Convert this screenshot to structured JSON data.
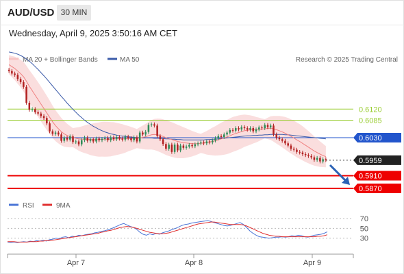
{
  "header": {
    "symbol": "AUD/USD",
    "timeframe": "30 MIN",
    "datetime": "Wednesday, April 9, 2025 3:50:16 AM CET"
  },
  "legend": {
    "ma20": "MA 20 + Bollinger Bands",
    "ma50": "MA 50",
    "rsi": "RSI",
    "ma9": "9MA"
  },
  "copyright": "Research © 2025 Trading Central",
  "colors": {
    "candle_up": "#2e8b57",
    "candle_down": "#b22222",
    "bollinger_fill": "#f9d6d6",
    "ma20": "#f08080",
    "ma50": "#3b5ba9",
    "level_green": "#9acd32",
    "level_blue": "#2255cc",
    "level_red": "#ee0000",
    "arrow": "#2b62b5",
    "rsi": "#4a74d6",
    "rsi_ma": "#e03030"
  },
  "chart_data": [
    {
      "type": "candlestick",
      "title": "AUD/USD 30 MIN",
      "x_ticks": [
        "Apr 7",
        "Apr 8",
        "Apr 9"
      ],
      "ylim": [
        0.5855,
        0.6235
      ],
      "levels": [
        {
          "value": 0.612,
          "label": "0.6120",
          "kind": "resistance"
        },
        {
          "value": 0.6085,
          "label": "0.6085",
          "kind": "resistance"
        },
        {
          "value": 0.603,
          "label": "0.6030",
          "kind": "pivot"
        },
        {
          "value": 0.5959,
          "label": "0.5959",
          "kind": "last"
        },
        {
          "value": 0.591,
          "label": "0.5910",
          "kind": "support"
        },
        {
          "value": 0.587,
          "label": "0.5870",
          "kind": "support"
        }
      ],
      "closes": [
        0.624,
        0.6232,
        0.6228,
        0.6215,
        0.6205,
        0.619,
        0.614,
        0.6118,
        0.612,
        0.611,
        0.6106,
        0.6098,
        0.6092,
        0.6075,
        0.605,
        0.6042,
        0.6046,
        0.604,
        0.602,
        0.603,
        0.6024,
        0.6034,
        0.6016,
        0.6018,
        0.6009,
        0.6022,
        0.603,
        0.602,
        0.6025,
        0.6018,
        0.6027,
        0.6022,
        0.6026,
        0.6029,
        0.6022,
        0.6031,
        0.6025,
        0.6032,
        0.6027,
        0.6024,
        0.6033,
        0.6028,
        0.6022,
        0.6031,
        0.6018,
        0.6046,
        0.604,
        0.6048,
        0.607,
        0.6072,
        0.6068,
        0.6035,
        0.6025,
        0.601,
        0.5995,
        0.6008,
        0.5985,
        0.6008,
        0.599,
        0.6005,
        0.5998,
        0.6002,
        0.6007,
        0.6003,
        0.6009,
        0.6012,
        0.6015,
        0.6012,
        0.6018,
        0.6015,
        0.6021,
        0.6028,
        0.6035,
        0.6032,
        0.604,
        0.6046,
        0.6054,
        0.6052,
        0.606,
        0.6056,
        0.6063,
        0.606,
        0.6055,
        0.606,
        0.605,
        0.6056,
        0.6062,
        0.606,
        0.607,
        0.6063,
        0.6068,
        0.604,
        0.603,
        0.6025,
        0.602,
        0.6012,
        0.6005,
        0.5995,
        0.5992,
        0.5985,
        0.5983,
        0.5978,
        0.5975,
        0.5972,
        0.5968,
        0.596,
        0.5966,
        0.5955,
        0.5962,
        0.5959
      ],
      "opens": [
        0.6244,
        0.624,
        0.6232,
        0.6228,
        0.6215,
        0.6205,
        0.619,
        0.614,
        0.6118,
        0.612,
        0.611,
        0.6106,
        0.6098,
        0.6092,
        0.6075,
        0.605,
        0.6042,
        0.6046,
        0.604,
        0.602,
        0.603,
        0.6024,
        0.6034,
        0.6016,
        0.6018,
        0.6009,
        0.6022,
        0.603,
        0.602,
        0.6025,
        0.6018,
        0.6027,
        0.6022,
        0.6026,
        0.6029,
        0.6022,
        0.6031,
        0.6025,
        0.6032,
        0.6027,
        0.6024,
        0.6033,
        0.6028,
        0.6022,
        0.6031,
        0.6018,
        0.6046,
        0.604,
        0.6048,
        0.607,
        0.6072,
        0.6068,
        0.6035,
        0.6025,
        0.601,
        0.5995,
        0.6008,
        0.5985,
        0.6008,
        0.599,
        0.6005,
        0.5998,
        0.6002,
        0.6007,
        0.6003,
        0.6009,
        0.6012,
        0.6015,
        0.6012,
        0.6018,
        0.6015,
        0.6021,
        0.6028,
        0.6035,
        0.6032,
        0.604,
        0.6046,
        0.6054,
        0.6052,
        0.606,
        0.6056,
        0.6063,
        0.606,
        0.6055,
        0.606,
        0.605,
        0.6056,
        0.6062,
        0.606,
        0.607,
        0.6063,
        0.6068,
        0.604,
        0.603,
        0.6025,
        0.602,
        0.6012,
        0.6005,
        0.5995,
        0.5992,
        0.5985,
        0.5983,
        0.5978,
        0.5975,
        0.5972,
        0.5968,
        0.596,
        0.5966,
        0.5955,
        0.5962
      ],
      "ma20": [
        0.626,
        0.6254,
        0.6248,
        0.624,
        0.6232,
        0.6222,
        0.6208,
        0.6192,
        0.6178,
        0.6164,
        0.615,
        0.6136,
        0.6122,
        0.6108,
        0.6094,
        0.608,
        0.6068,
        0.6058,
        0.6049,
        0.6042,
        0.6037,
        0.6033,
        0.603,
        0.6028,
        0.6026,
        0.6025,
        0.6025,
        0.6025,
        0.6024,
        0.6024,
        0.6024,
        0.6024,
        0.6025,
        0.6025,
        0.6025,
        0.6025,
        0.6026,
        0.6026,
        0.6026,
        0.6026,
        0.6026,
        0.6027,
        0.6027,
        0.6027,
        0.6027,
        0.6029,
        0.6031,
        0.6033,
        0.6036,
        0.6039,
        0.604,
        0.6039,
        0.6037,
        0.6034,
        0.603,
        0.6027,
        0.6024,
        0.6021,
        0.6018,
        0.6016,
        0.6014,
        0.6013,
        0.6012,
        0.6011,
        0.6011,
        0.6011,
        0.6012,
        0.6013,
        0.6014,
        0.6016,
        0.6018,
        0.602,
        0.6023,
        0.6026,
        0.6029,
        0.6032,
        0.6036,
        0.604,
        0.6043,
        0.6046,
        0.6049,
        0.6052,
        0.6053,
        0.6054,
        0.6055,
        0.6055,
        0.6056,
        0.6057,
        0.6058,
        0.6059,
        0.606,
        0.6058,
        0.6055,
        0.6052,
        0.6048,
        0.6044,
        0.6039,
        0.6034,
        0.6029,
        0.6023,
        0.6018,
        0.6012,
        0.6006,
        0.6,
        0.5994,
        0.5988,
        0.5983,
        0.5978,
        0.5974,
        0.597
      ],
      "ma50": [
        0.63,
        0.6298,
        0.6296,
        0.6293,
        0.6289,
        0.6284,
        0.6278,
        0.6271,
        0.6263,
        0.6254,
        0.6245,
        0.6235,
        0.6225,
        0.6215,
        0.6204,
        0.6193,
        0.6182,
        0.6171,
        0.616,
        0.615,
        0.6139,
        0.6129,
        0.6119,
        0.611,
        0.6101,
        0.6093,
        0.6085,
        0.6078,
        0.6072,
        0.6066,
        0.6061,
        0.6056,
        0.6052,
        0.6048,
        0.6045,
        0.6042,
        0.604,
        0.6038,
        0.6036,
        0.6035,
        0.6034,
        0.6033,
        0.6032,
        0.6031,
        0.603,
        0.603,
        0.6029,
        0.6029,
        0.6029,
        0.6029,
        0.6028,
        0.6028,
        0.6028,
        0.6027,
        0.6026,
        0.6026,
        0.6025,
        0.6025,
        0.6024,
        0.6024,
        0.6023,
        0.6023,
        0.6023,
        0.6023,
        0.6023,
        0.6023,
        0.6023,
        0.6023,
        0.6024,
        0.6024,
        0.6025,
        0.6025,
        0.6026,
        0.6027,
        0.6028,
        0.6029,
        0.603,
        0.6031,
        0.6032,
        0.6033,
        0.6034,
        0.6035,
        0.6036,
        0.6036,
        0.6037,
        0.6037,
        0.6038,
        0.6038,
        0.6039,
        0.6039,
        0.604,
        0.604,
        0.604,
        0.604,
        0.604,
        0.6039,
        0.6039,
        0.6038,
        0.6037,
        0.6036,
        0.6035,
        0.6034,
        0.6033,
        0.6032,
        0.6031,
        0.603,
        0.6029,
        0.6028,
        0.6027,
        0.6026
      ]
    },
    {
      "type": "line",
      "title": "RSI",
      "y_ticks": [
        70,
        50,
        30
      ],
      "ylim": [
        10,
        80
      ],
      "series": [
        {
          "name": "RSI",
          "values": [
            22,
            21,
            22,
            21,
            22,
            23,
            22,
            24,
            23,
            25,
            24,
            26,
            24,
            27,
            28,
            30,
            29,
            32,
            33,
            31,
            34,
            33,
            36,
            35,
            37,
            38,
            39,
            41,
            42,
            44,
            45,
            47,
            49,
            52,
            55,
            58,
            60,
            57,
            54,
            52,
            48,
            42,
            38,
            36,
            39,
            37,
            40,
            38,
            41,
            43,
            45,
            48,
            50,
            53,
            56,
            58,
            59,
            61,
            62,
            63,
            64,
            65,
            66,
            64,
            62,
            60,
            58,
            56,
            55,
            56,
            58,
            60,
            62,
            58,
            52,
            45,
            40,
            36,
            33,
            32,
            31,
            30,
            31,
            32,
            32,
            33,
            32,
            33,
            35,
            34,
            36,
            35,
            33,
            32,
            34,
            36,
            37,
            38,
            40,
            43
          ]
        },
        {
          "name": "9MA",
          "values": [
            23,
            23,
            23,
            22,
            22,
            22,
            22,
            23,
            23,
            23,
            24,
            24,
            25,
            25,
            26,
            27,
            28,
            29,
            30,
            31,
            32,
            33,
            34,
            35,
            36,
            37,
            38,
            39,
            40,
            42,
            43,
            45,
            46,
            48,
            50,
            52,
            53,
            54,
            53,
            52,
            50,
            48,
            46,
            44,
            42,
            41,
            40,
            39,
            39,
            40,
            41,
            43,
            45,
            47,
            49,
            51,
            53,
            55,
            57,
            59,
            60,
            61,
            62,
            63,
            63,
            62,
            61,
            60,
            59,
            58,
            58,
            58,
            58,
            57,
            55,
            52,
            49,
            46,
            43,
            40,
            38,
            36,
            35,
            34,
            34,
            33,
            33,
            33,
            33,
            33,
            33,
            33,
            33,
            33,
            33,
            33,
            34,
            34,
            35,
            37
          ]
        }
      ]
    }
  ]
}
